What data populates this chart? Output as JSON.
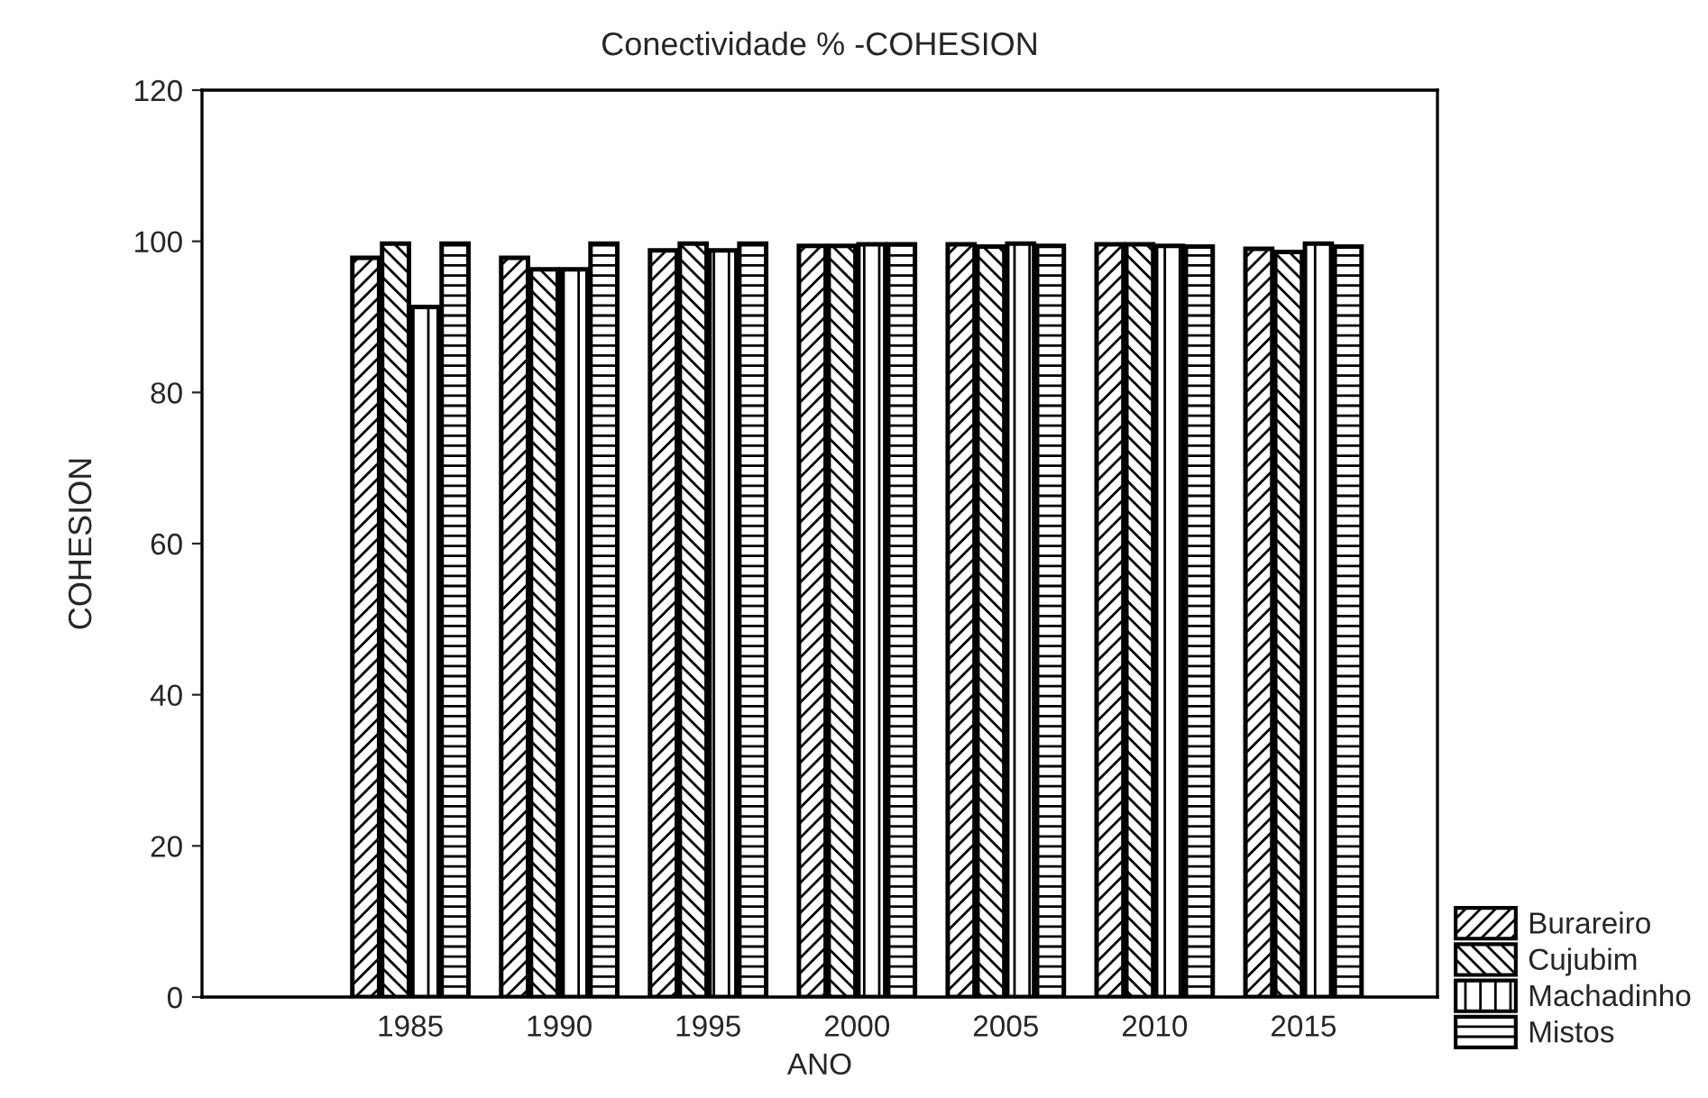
{
  "chart_data": {
    "type": "bar",
    "title": "Conectividade % -COHESION",
    "xlabel": "ANO",
    "ylabel": "COHESION",
    "categories": [
      "1985",
      "1990",
      "1995",
      "2000",
      "2005",
      "2010",
      "2015"
    ],
    "series": [
      {
        "name": "Burareiro",
        "color": "#000000",
        "values": [
          97.8,
          97.8,
          98.8,
          99.4,
          99.6,
          99.6,
          99.0
        ]
      },
      {
        "name": "Cujubim",
        "color": "#000000",
        "values": [
          99.7,
          96.3,
          99.7,
          99.4,
          99.3,
          99.6,
          98.6
        ]
      },
      {
        "name": "Machadinho",
        "color": "#000000",
        "values": [
          91.3,
          96.3,
          98.8,
          99.6,
          99.7,
          99.4,
          99.7
        ]
      },
      {
        "name": "Mistos",
        "color": "#000000",
        "values": [
          99.7,
          99.7,
          99.7,
          99.6,
          99.4,
          99.3,
          99.3
        ]
      }
    ],
    "ylim": [
      0,
      120
    ],
    "yticks": [
      0,
      20,
      40,
      60,
      80,
      100,
      120
    ],
    "grid": false,
    "legend": "bottom right"
  }
}
